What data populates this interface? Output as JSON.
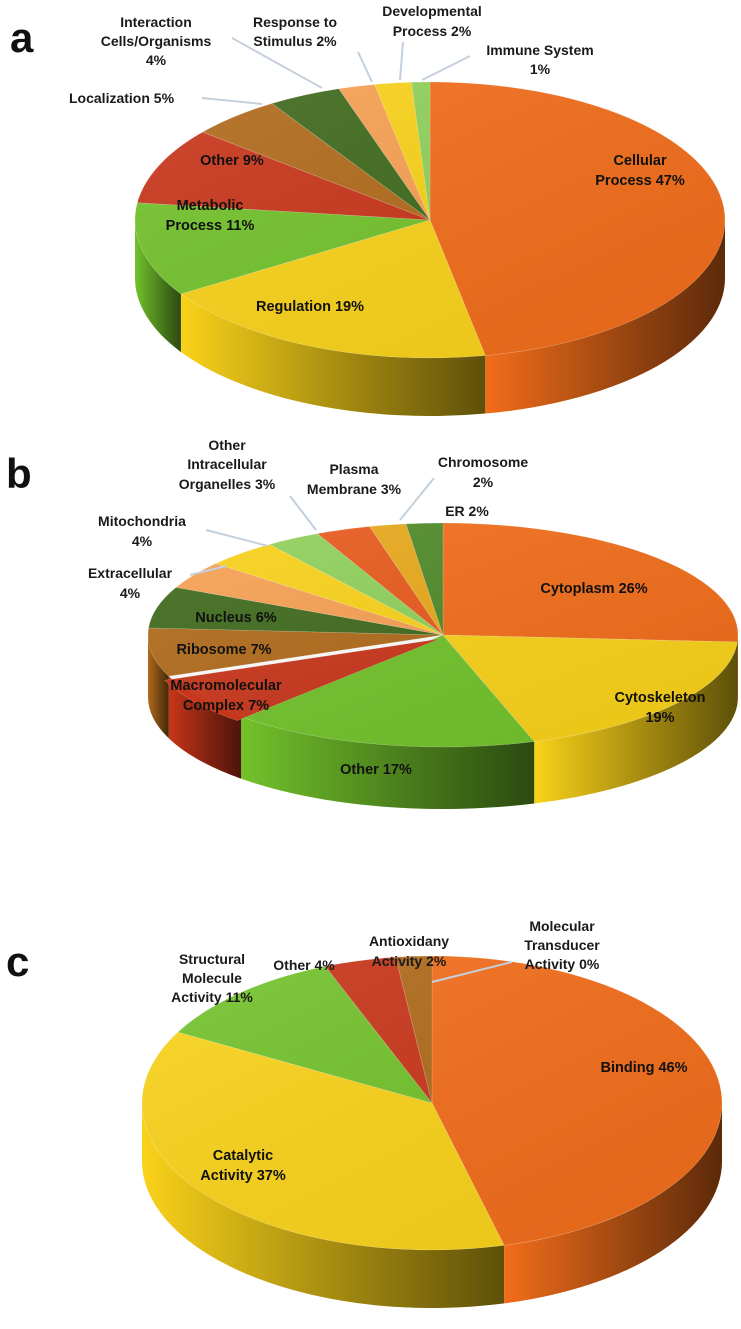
{
  "chart_data": [
    {
      "panel": "a",
      "type": "pie",
      "categories": [
        "Cellular Process",
        "Regulation",
        "Metabolic Process",
        "Other",
        "Localization",
        "Interaction Cells/Organisms",
        "Response to Stimulus",
        "Developmental Process",
        "Immune System"
      ],
      "values": [
        47,
        19,
        11,
        9,
        5,
        4,
        2,
        2,
        1
      ],
      "labels": [
        "Cellular Process 47%",
        "Regulation 19%",
        "Metabolic Process 11%",
        "Other 9%",
        "Localization 5%",
        "Interaction Cells/Organisms 4%",
        "Response to Stimulus 2%",
        "Developmental Process 2%",
        "Immune System 1%"
      ],
      "colors": [
        "#f26d1a",
        "#f9d219",
        "#72c22b",
        "#c8351a",
        "#b06a1a",
        "#3f6a1c",
        "#f7a052",
        "#f9d219",
        "#8fd15a"
      ]
    },
    {
      "panel": "b",
      "type": "pie",
      "categories": [
        "Cytoplasm",
        "Cytoskeleton",
        "Other",
        "Macromolecular Complex",
        "Ribosome",
        "Nucleus",
        "Extracellular",
        "Mitochondria",
        "Other Intracellular Organelles",
        "Plasma Membrane",
        "Chromosome",
        "ER"
      ],
      "values": [
        26,
        19,
        17,
        7,
        7,
        6,
        4,
        4,
        3,
        3,
        2,
        2
      ],
      "labels": [
        "Cytoplasm 26%",
        "Cytoskeleton 19%",
        "Other 17%",
        "Macromolecular Complex 7%",
        "Ribosome 7%",
        "Nucleus 6%",
        "Extracellular 4%",
        "Mitochondria 4%",
        "Other Intracellular Organelles 3%",
        "Plasma Membrane 3%",
        "Chromosome 2%",
        "ER 2%"
      ],
      "colors": [
        "#f26d1a",
        "#f9d219",
        "#72c22b",
        "#c8351a",
        "#b06a1a",
        "#3f6a1c",
        "#f7a052",
        "#f9d219",
        "#8fd15a",
        "#e85a1c",
        "#e8a81a",
        "#4f8a28"
      ]
    },
    {
      "panel": "c",
      "type": "pie",
      "categories": [
        "Binding",
        "Catalytic Activity",
        "Structural Molecule Activity",
        "Other",
        "Antioxidany Activity",
        "Molecular Transducer Activity"
      ],
      "values": [
        46,
        37,
        11,
        4,
        2,
        0
      ],
      "labels": [
        "Binding 46%",
        "Catalytic Activity 37%",
        "Structural Molecule Activity 11%",
        "Other 4%",
        "Antioxidany Activity 2%",
        "Molecular Transducer Activity 0%"
      ],
      "colors": [
        "#f26d1a",
        "#f9d219",
        "#72c22b",
        "#c8351a",
        "#b06a1a",
        "#3f6a1c"
      ]
    }
  ],
  "panels": {
    "a": {
      "letter": "a",
      "inside_labels": [
        [
          "Cellular",
          "Process 47%"
        ],
        [
          "Regulation 19%"
        ],
        [
          "Metabolic",
          "Process 11%"
        ],
        [
          "Other 9%"
        ]
      ],
      "outside_labels": [
        [
          "Localization 5%"
        ],
        [
          "Interaction",
          "Cells/Organisms",
          "4%"
        ],
        [
          "Response to",
          "Stimulus 2%"
        ],
        [
          "Developmental",
          "Process 2%"
        ],
        [
          "Immune System",
          "1%"
        ]
      ]
    },
    "b": {
      "letter": "b",
      "inside_labels": [
        [
          "Cytoplasm 26%"
        ],
        [
          "Cytoskeleton",
          "19%"
        ],
        [
          "Other 17%"
        ],
        [
          "Macromolecular",
          "Complex 7%"
        ],
        [
          "Ribosome 7%"
        ],
        [
          "Nucleus 6%"
        ]
      ],
      "outside_labels": [
        [
          "Extracellular",
          "4%"
        ],
        [
          "Mitochondria",
          "4%"
        ],
        [
          "Other",
          "Intracellular",
          "Organelles 3%"
        ],
        [
          "Plasma",
          "Membrane 3%"
        ],
        [
          "Chromosome",
          "2%"
        ],
        [
          "ER 2%"
        ]
      ]
    },
    "c": {
      "letter": "c",
      "inside_labels": [
        [
          "Binding 46%"
        ],
        [
          "Catalytic",
          "Activity 37%"
        ]
      ],
      "outside_labels": [
        [
          "Structural",
          "Molecule",
          "Activity 11%"
        ],
        [
          "Other 4%"
        ],
        [
          "Antioxidany",
          "Activity 2%"
        ],
        [
          "Molecular",
          "Transducer",
          "Activity 0%"
        ]
      ]
    }
  }
}
